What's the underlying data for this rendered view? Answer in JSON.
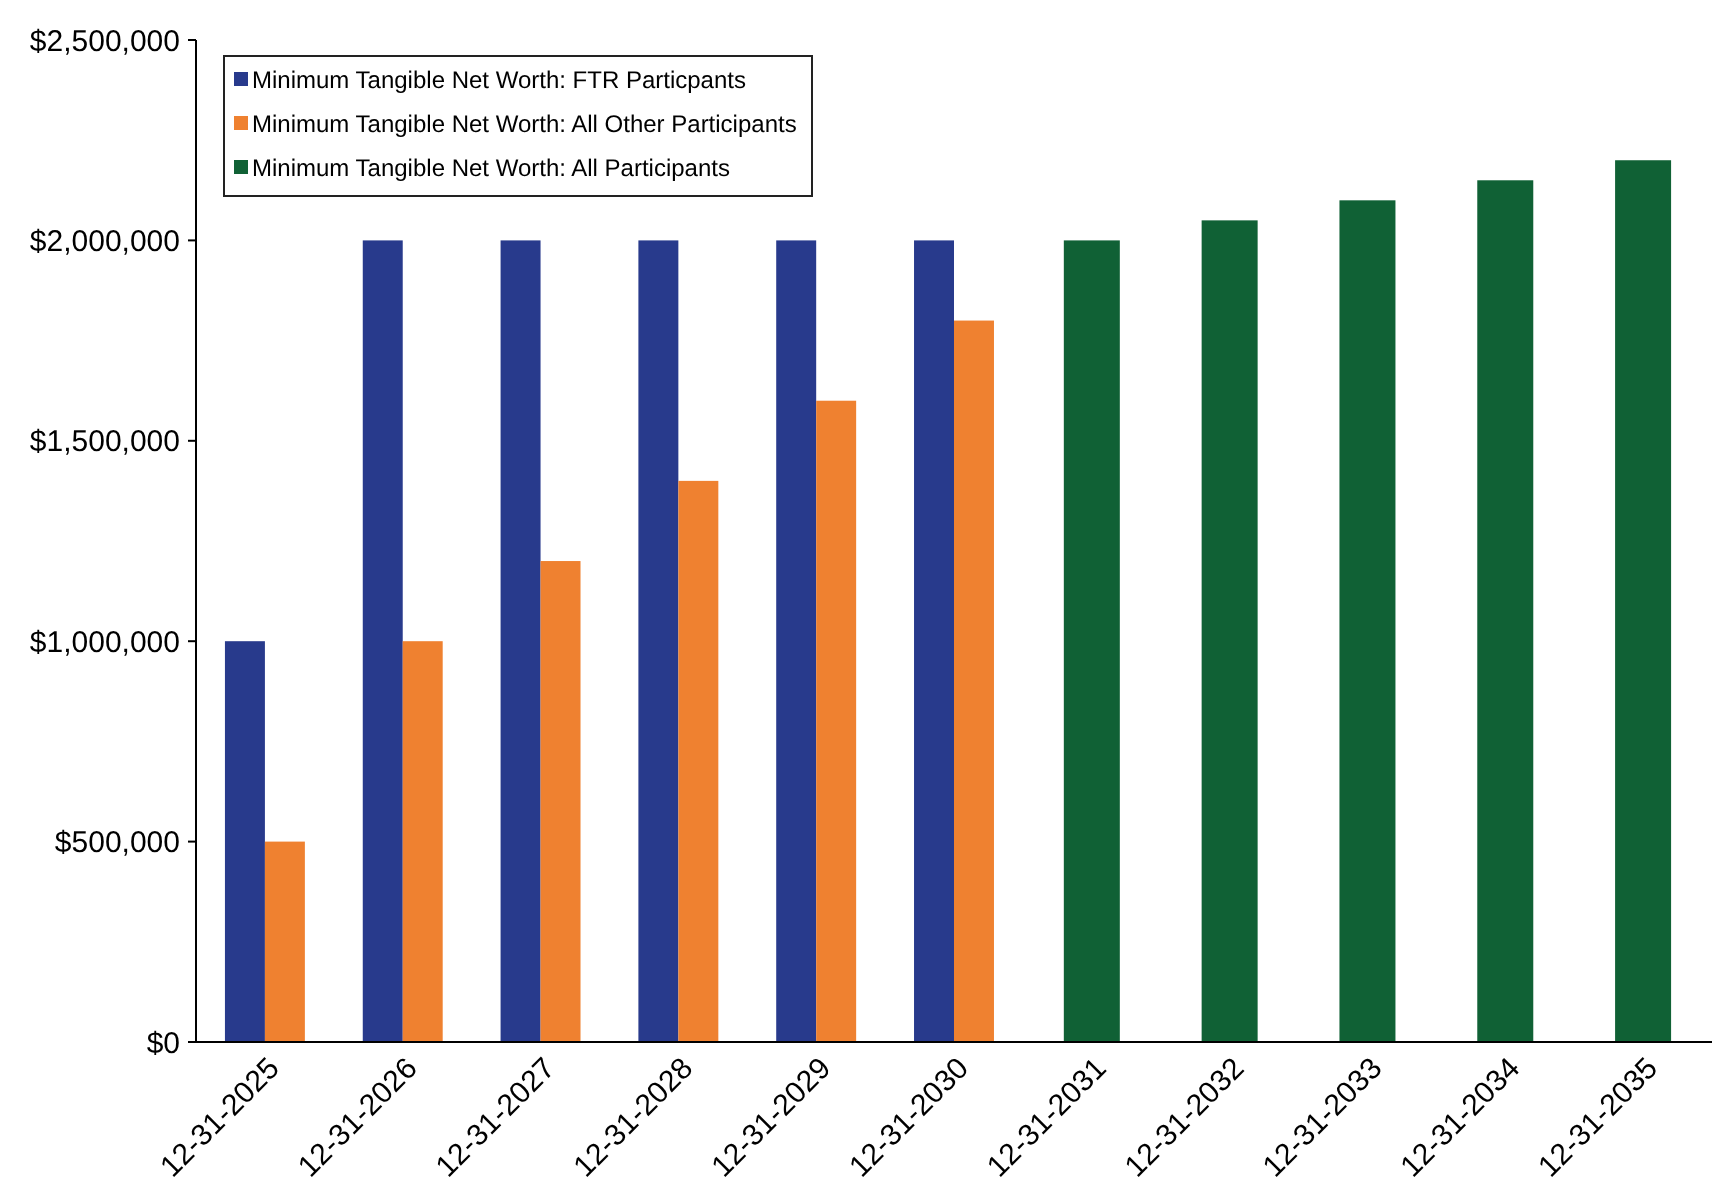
{
  "chart_data": {
    "type": "bar",
    "categories": [
      "12-31-2025",
      "12-31-2026",
      "12-31-2027",
      "12-31-2028",
      "12-31-2029",
      "12-31-2030",
      "12-31-2031",
      "12-31-2032",
      "12-31-2033",
      "12-31-2034",
      "12-31-2035"
    ],
    "series": [
      {
        "name": "Minimum Tangible Net Worth: FTR Particpants",
        "color": "#283a8c",
        "values": [
          1000000,
          2000000,
          2000000,
          2000000,
          2000000,
          2000000,
          null,
          null,
          null,
          null,
          null
        ]
      },
      {
        "name": "Minimum Tangible Net Worth: All Other Participants",
        "color": "#ef8130",
        "values": [
          500000,
          1000000,
          1200000,
          1400000,
          1600000,
          1800000,
          null,
          null,
          null,
          null,
          null
        ]
      },
      {
        "name": "Minimum Tangible Net Worth: All Participants",
        "color": "#106135",
        "values": [
          null,
          null,
          null,
          null,
          null,
          null,
          2000000,
          2050000,
          2100000,
          2150000,
          2200000
        ]
      }
    ],
    "ylim": [
      0,
      2500000
    ],
    "yticks": [
      {
        "value": 0,
        "label": "$0"
      },
      {
        "value": 500000,
        "label": "$500,000"
      },
      {
        "value": 1000000,
        "label": "$1,000,000"
      },
      {
        "value": 1500000,
        "label": "$1,500,000"
      },
      {
        "value": 2000000,
        "label": "$2,000,000"
      },
      {
        "value": 2500000,
        "label": "$2,500,000"
      }
    ],
    "grid": false,
    "legend": "top left"
  }
}
